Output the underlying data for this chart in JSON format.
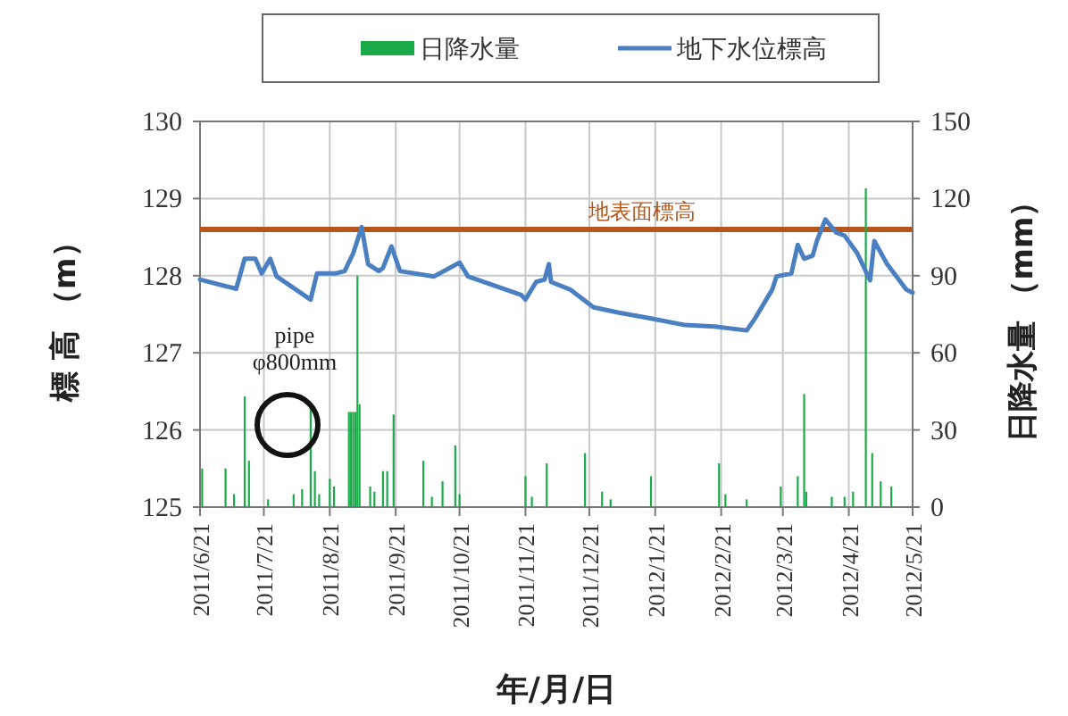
{
  "chart_data": {
    "type": "line",
    "xlabel": "年/月/日",
    "ylabel": "標 高 （m）",
    "y2label": "日降水量 （mm）",
    "xlim": [
      "2011-06-21",
      "2012-05-21"
    ],
    "xticks": [
      {
        "value": "2011-06-21",
        "label": "2011/6/21"
      },
      {
        "value": "2011-07-21",
        "label": "2011/7/21"
      },
      {
        "value": "2011-08-21",
        "label": "2011/8/21"
      },
      {
        "value": "2011-09-21",
        "label": "2011/9/21"
      },
      {
        "value": "2011-10-21",
        "label": "2011/10/21"
      },
      {
        "value": "2011-11-21",
        "label": "2011/11/21"
      },
      {
        "value": "2011-12-21",
        "label": "2011/12/21"
      },
      {
        "value": "2012-01-21",
        "label": "2012/1/21"
      },
      {
        "value": "2012-02-21",
        "label": "2012/2/21"
      },
      {
        "value": "2012-03-21",
        "label": "2012/3/21"
      },
      {
        "value": "2012-04-21",
        "label": "2012/4/21"
      },
      {
        "value": "2012-05-21",
        "label": "2012/5/21"
      }
    ],
    "ylim": [
      125,
      130
    ],
    "yticks": [
      125,
      126,
      127,
      128,
      129,
      130
    ],
    "y2lim": [
      0,
      150
    ],
    "y2ticks": [
      0,
      30,
      60,
      90,
      120,
      150
    ],
    "grid": true,
    "legend": "top",
    "series": [
      {
        "name": "日降水量",
        "type": "bar",
        "axis": "y2",
        "color": "#1aaa4a",
        "x": [
          "2011-06-22",
          "2011-07-03",
          "2011-07-07",
          "2011-07-12",
          "2011-07-14",
          "2011-07-23",
          "2011-08-04",
          "2011-08-08",
          "2011-08-12",
          "2011-08-14",
          "2011-08-16",
          "2011-08-21",
          "2011-08-23",
          "2011-08-30",
          "2011-08-31",
          "2011-09-01",
          "2011-09-02",
          "2011-09-03",
          "2011-09-04",
          "2011-09-09",
          "2011-09-11",
          "2011-09-15",
          "2011-09-17",
          "2011-09-20",
          "2011-10-04",
          "2011-10-08",
          "2011-10-13",
          "2011-10-19",
          "2011-10-21",
          "2011-11-21",
          "2011-11-24",
          "2011-12-01",
          "2011-12-19",
          "2011-12-27",
          "2011-12-31",
          "2012-01-19",
          "2012-02-20",
          "2012-02-23",
          "2012-03-04",
          "2012-03-20",
          "2012-03-28",
          "2012-03-31",
          "2012-04-01",
          "2012-04-13",
          "2012-04-19",
          "2012-04-23",
          "2012-04-29",
          "2012-05-02",
          "2012-05-06",
          "2012-05-11"
        ],
        "values": [
          15,
          15,
          5,
          43,
          18,
          3,
          5,
          7,
          39,
          14,
          5,
          11,
          8,
          37,
          37,
          37,
          37,
          90,
          40,
          8,
          6,
          14,
          14,
          36,
          18,
          4,
          10,
          24,
          5,
          12,
          4,
          17,
          21,
          6,
          3,
          12,
          17,
          5,
          3,
          8,
          12,
          44,
          6,
          4,
          4,
          6,
          124,
          21,
          10,
          8
        ]
      },
      {
        "name": "地下水位標高",
        "color": "#4a7fc1",
        "x": [
          "2011-06-21",
          "2011-07-08",
          "2011-07-12",
          "2011-07-17",
          "2011-07-20",
          "2011-07-24",
          "2011-07-27",
          "2011-08-12",
          "2011-08-15",
          "2011-08-24",
          "2011-08-28",
          "2011-09-01",
          "2011-09-05",
          "2011-09-08",
          "2011-09-13",
          "2011-09-15",
          "2011-09-19",
          "2011-09-23",
          "2011-10-09",
          "2011-10-21",
          "2011-10-25",
          "2011-11-19",
          "2011-11-21",
          "2011-11-26",
          "2011-11-30",
          "2011-12-02",
          "2011-12-03",
          "2011-12-12",
          "2011-12-23",
          "2012-01-04",
          "2012-01-18",
          "2012-02-04",
          "2012-02-18",
          "2012-03-04",
          "2012-03-08",
          "2012-03-16",
          "2012-03-18",
          "2012-03-25",
          "2012-03-28",
          "2012-03-31",
          "2012-04-04",
          "2012-04-06",
          "2012-04-10",
          "2012-04-15",
          "2012-04-19",
          "2012-04-25",
          "2012-05-01",
          "2012-05-03",
          "2012-05-09",
          "2012-05-18",
          "2012-05-21"
        ],
        "values": [
          127.95,
          127.83,
          128.22,
          128.22,
          128.03,
          128.22,
          127.99,
          127.69,
          128.03,
          128.03,
          128.06,
          128.29,
          128.63,
          128.15,
          128.06,
          128.1,
          128.38,
          128.06,
          127.99,
          128.17,
          127.99,
          127.75,
          127.69,
          127.92,
          127.95,
          128.15,
          127.92,
          127.82,
          127.59,
          127.52,
          127.45,
          127.36,
          127.34,
          127.29,
          127.45,
          127.82,
          127.99,
          128.03,
          128.4,
          128.22,
          128.26,
          128.45,
          128.73,
          128.56,
          128.52,
          128.29,
          127.94,
          128.45,
          128.15,
          127.82,
          127.78
        ]
      }
    ],
    "ref_lines": [
      {
        "axis": "y",
        "value": 128.6,
        "label": "地表面標高",
        "color": "#b5561c"
      }
    ],
    "annotations": [
      "pipe\nφ800mm"
    ]
  }
}
